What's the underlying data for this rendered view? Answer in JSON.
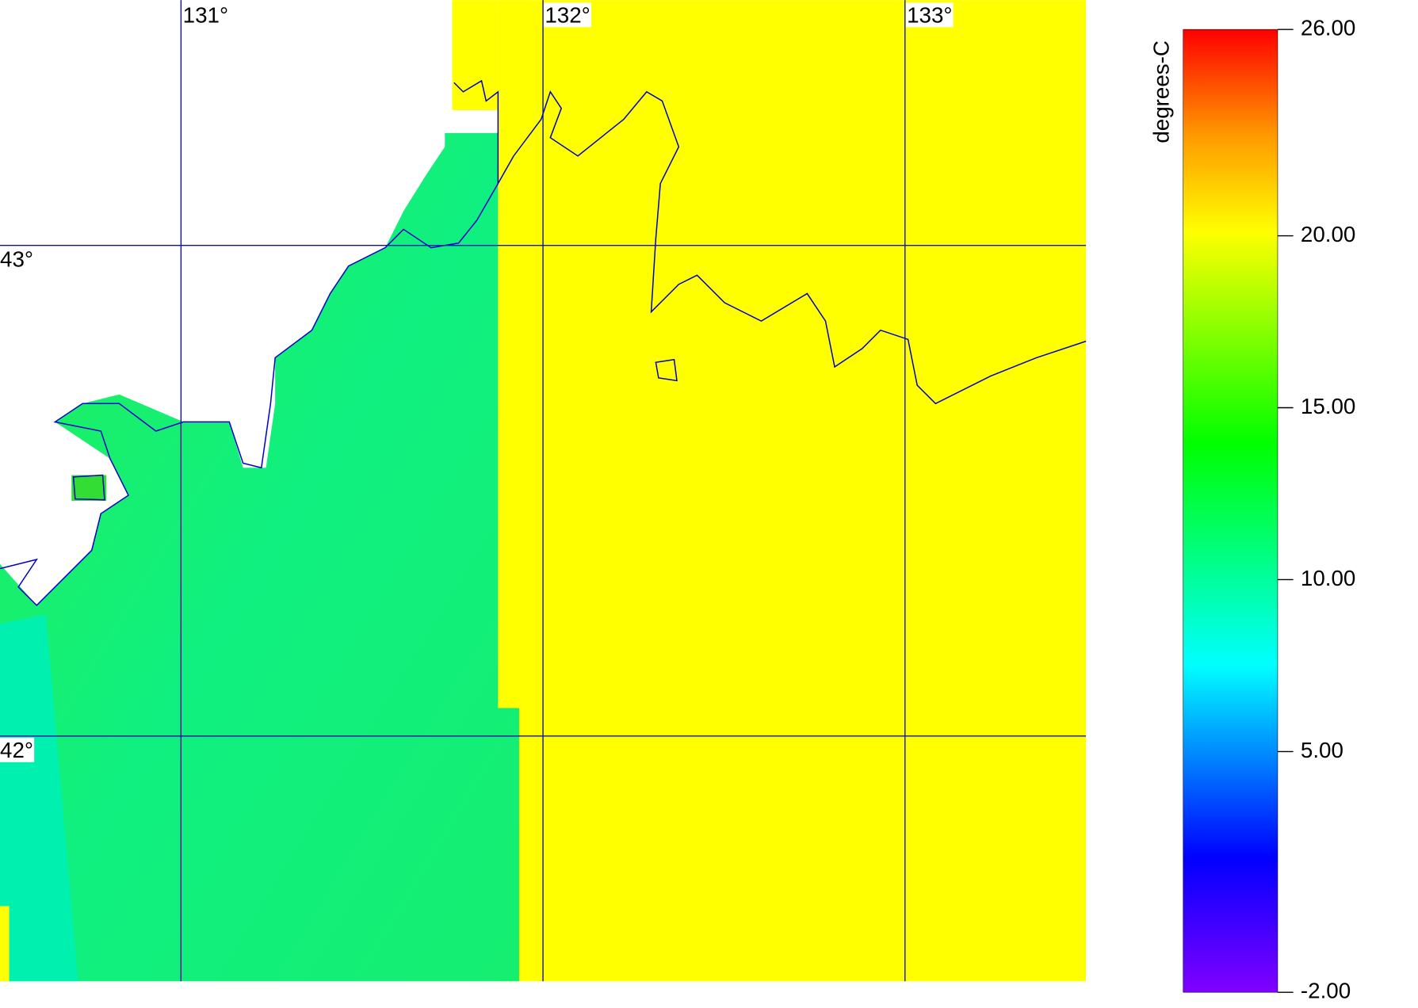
{
  "map": {
    "xlim": [
      130.5,
      133.5
    ],
    "ylim": [
      41.5,
      43.5
    ],
    "lon_ticks": [
      {
        "value": 131,
        "label": "131°"
      },
      {
        "value": 132,
        "label": "132°"
      },
      {
        "value": 133,
        "label": "133°"
      }
    ],
    "lat_ticks": [
      {
        "value": 43,
        "label": "43°"
      },
      {
        "value": 42,
        "label": "42°"
      }
    ]
  },
  "colorbar": {
    "title": "degrees-C",
    "lim": [
      -2,
      26
    ],
    "ticks": [
      {
        "value": 26,
        "label": "26.00"
      },
      {
        "value": 20,
        "label": "20.00"
      },
      {
        "value": 15,
        "label": "15.00"
      },
      {
        "value": 10,
        "label": "10.00"
      },
      {
        "value": 5,
        "label": "5.00"
      },
      {
        "value": -2,
        "label": "-2.00"
      }
    ]
  }
}
